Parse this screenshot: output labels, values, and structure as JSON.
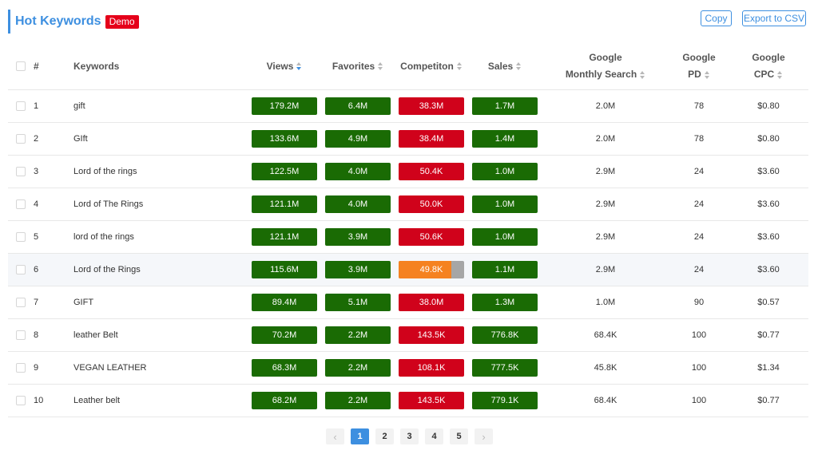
{
  "header": {
    "title": "Hot Keywords",
    "badge": "Demo"
  },
  "toolbar": {
    "copy_label": "Copy",
    "export_label": "Export to CSV"
  },
  "table": {
    "columns": {
      "index": "#",
      "keywords": "Keywords",
      "views": "Views",
      "favorites": "Favorites",
      "competition": "Competiton",
      "sales": "Sales",
      "google_monthly_line1": "Google",
      "google_monthly_line2": "Monthly Search",
      "google_pd_line1": "Google",
      "google_pd_line2": "PD",
      "google_cpc_line1": "Google",
      "google_cpc_line2": "CPC"
    },
    "rows": [
      {
        "index": "1",
        "keyword": "gift",
        "views": "179.2M",
        "favorites": "6.4M",
        "competition": "38.3M",
        "competition_color": "red",
        "sales": "1.7M",
        "monthly": "2.0M",
        "pd": "78",
        "cpc": "$0.80"
      },
      {
        "index": "2",
        "keyword": "GIft",
        "views": "133.6M",
        "favorites": "4.9M",
        "competition": "38.4M",
        "competition_color": "red",
        "sales": "1.4M",
        "monthly": "2.0M",
        "pd": "78",
        "cpc": "$0.80"
      },
      {
        "index": "3",
        "keyword": "Lord of the rings",
        "views": "122.5M",
        "favorites": "4.0M",
        "competition": "50.4K",
        "competition_color": "red",
        "sales": "1.0M",
        "monthly": "2.9M",
        "pd": "24",
        "cpc": "$3.60"
      },
      {
        "index": "4",
        "keyword": "Lord of The Rings",
        "views": "121.1M",
        "favorites": "4.0M",
        "competition": "50.0K",
        "competition_color": "red",
        "sales": "1.0M",
        "monthly": "2.9M",
        "pd": "24",
        "cpc": "$3.60"
      },
      {
        "index": "5",
        "keyword": "lord of the rings",
        "views": "121.1M",
        "favorites": "3.9M",
        "competition": "50.6K",
        "competition_color": "red",
        "sales": "1.0M",
        "monthly": "2.9M",
        "pd": "24",
        "cpc": "$3.60"
      },
      {
        "index": "6",
        "keyword": "Lord of the Rings",
        "views": "115.6M",
        "favorites": "3.9M",
        "competition": "49.8K",
        "competition_color": "orange",
        "competition_fill": 0.8,
        "sales": "1.1M",
        "monthly": "2.9M",
        "pd": "24",
        "cpc": "$3.60",
        "highlighted": true
      },
      {
        "index": "7",
        "keyword": "GIFT",
        "views": "89.4M",
        "favorites": "5.1M",
        "competition": "38.0M",
        "competition_color": "red",
        "sales": "1.3M",
        "monthly": "1.0M",
        "pd": "90",
        "cpc": "$0.57"
      },
      {
        "index": "8",
        "keyword": "leather Belt",
        "views": "70.2M",
        "favorites": "2.2M",
        "competition": "143.5K",
        "competition_color": "red",
        "sales": "776.8K",
        "monthly": "68.4K",
        "pd": "100",
        "cpc": "$0.77"
      },
      {
        "index": "9",
        "keyword": "VEGAN LEATHER",
        "views": "68.3M",
        "favorites": "2.2M",
        "competition": "108.1K",
        "competition_color": "red",
        "sales": "777.5K",
        "monthly": "45.8K",
        "pd": "100",
        "cpc": "$1.34"
      },
      {
        "index": "10",
        "keyword": "Leather belt",
        "views": "68.2M",
        "favorites": "2.2M",
        "competition": "143.5K",
        "competition_color": "red",
        "sales": "779.1K",
        "monthly": "68.4K",
        "pd": "100",
        "cpc": "$0.77"
      }
    ]
  },
  "pagination": {
    "prev_icon": "chevron-left-icon",
    "next_icon": "chevron-right-icon",
    "prev_glyph": "‹",
    "next_glyph": "›",
    "pages": [
      "1",
      "2",
      "3",
      "4",
      "5"
    ],
    "current": "1"
  },
  "colors": {
    "accent": "#3d8fe0",
    "badge": "#e5001a",
    "green": "#1a6b04",
    "red": "#d0021b",
    "orange": "#f58220",
    "gray": "#a6a6a6"
  }
}
